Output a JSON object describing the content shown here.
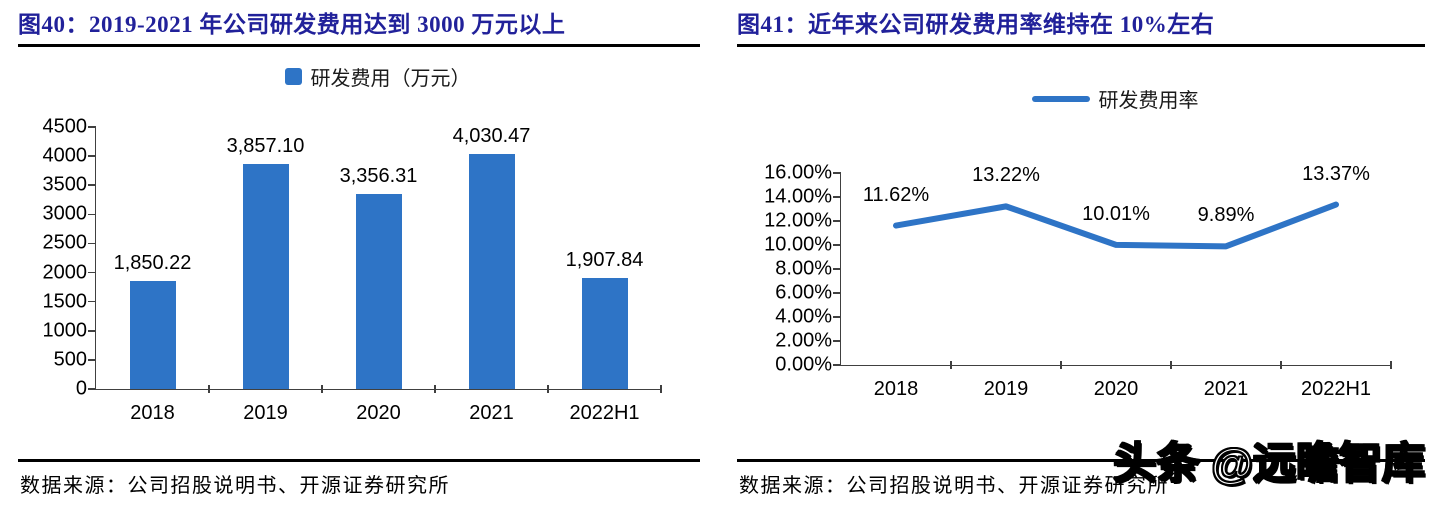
{
  "colors": {
    "accent_blue": "#2E74C6",
    "title_navy": "#21219A",
    "axis_gray": "#404040",
    "rule_black": "#000000"
  },
  "figures": {
    "left": {
      "title": "图40：2019-2021 年公司研发费用达到 3000 万元以上",
      "legend_label": "研发费用（万元）",
      "source": "数据来源：公司招股说明书、开源证券研究所"
    },
    "right": {
      "title": "图41：近年来公司研发费用率维持在 10%左右",
      "legend_label": "研发费用率",
      "source": "数据来源：公司招股说明书、开源证券研究所"
    }
  },
  "watermark": "头条 @远瞻智库",
  "chart_data": [
    {
      "type": "bar",
      "title": "2019-2021 年公司研发费用达到 3000 万元以上",
      "legend": [
        "研发费用（万元）"
      ],
      "legend_position": "top",
      "categories": [
        "2018",
        "2019",
        "2020",
        "2021",
        "2022H1"
      ],
      "values": [
        1850.22,
        3857.1,
        3356.31,
        4030.47,
        1907.84
      ],
      "value_labels": [
        "1,850.22",
        "3,857.10",
        "3,356.31",
        "4,030.47",
        "1,907.84"
      ],
      "xlabel": "",
      "ylabel": "",
      "ylim": [
        0,
        4500
      ],
      "ytick_step": 500,
      "yticks": [
        "0",
        "500",
        "1000",
        "1500",
        "2000",
        "2500",
        "3000",
        "3500",
        "4000",
        "4500"
      ],
      "grid": false,
      "bar_color": "#2E74C6"
    },
    {
      "type": "line",
      "title": "近年来公司研发费用率维持在 10%左右",
      "legend": [
        "研发费用率"
      ],
      "legend_position": "top",
      "categories": [
        "2018",
        "2019",
        "2020",
        "2021",
        "2022H1"
      ],
      "values": [
        11.62,
        13.22,
        10.01,
        9.89,
        13.37
      ],
      "value_labels": [
        "11.62%",
        "13.22%",
        "10.01%",
        "9.89%",
        "13.37%"
      ],
      "xlabel": "",
      "ylabel": "",
      "ylim": [
        0,
        16
      ],
      "ytick_step": 2,
      "yticks": [
        "0.00%",
        "2.00%",
        "4.00%",
        "6.00%",
        "8.00%",
        "10.00%",
        "12.00%",
        "14.00%",
        "16.00%"
      ],
      "grid": false,
      "line_color": "#2E74C6"
    }
  ]
}
